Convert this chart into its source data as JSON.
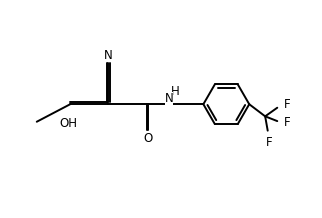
{
  "bg_color": "#ffffff",
  "line_color": "#000000",
  "line_width": 1.4,
  "font_size": 8.5,
  "figsize": [
    3.22,
    2.18
  ],
  "dpi": 100,
  "xlim": [
    0,
    10
  ],
  "ylim": [
    0,
    6.8
  ]
}
